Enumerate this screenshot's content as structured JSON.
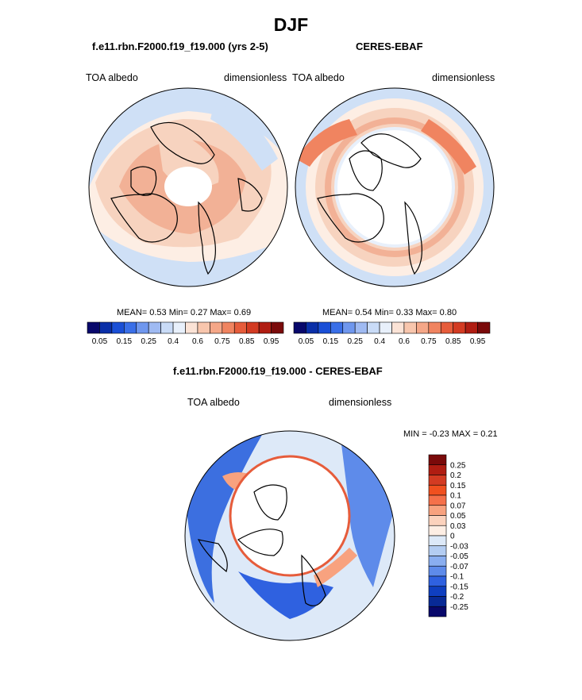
{
  "page_title": "DJF",
  "panels": [
    {
      "title": "f.e11.rbn.F2000.f19_f19.000 (yrs 2-5)",
      "left_label": "TOA albedo",
      "right_label": "dimensionless",
      "stats": "MEAN=   0.53   Min=   0.27   Max=   0.69"
    },
    {
      "title": "CERES-EBAF",
      "left_label": "TOA albedo",
      "right_label": "dimensionless",
      "stats": "MEAN=   0.54   Min=   0.33   Max=   0.80"
    },
    {
      "title": "f.e11.rbn.F2000.f19_f19.000 - CERES-EBAF",
      "left_label": "TOA albedo",
      "right_label": "dimensionless",
      "stats": "MIN =  -0.23 MAX =   0.21"
    }
  ],
  "colorbar_main": {
    "tick_labels": [
      "0.05",
      "0.15",
      "0.25",
      "0.4",
      "0.6",
      "0.75",
      "0.85",
      "0.95"
    ],
    "colors": [
      "#08086b",
      "#0a2fa8",
      "#1a4fd6",
      "#3a6fe8",
      "#6f97ee",
      "#9fbaf2",
      "#c9dbf7",
      "#e8f0fb",
      "#fbe3d6",
      "#f8c6ad",
      "#f5a788",
      "#f08460",
      "#e65c3b",
      "#d33b22",
      "#b01d12",
      "#7a0a0a"
    ]
  },
  "colorbar_diff": {
    "tick_labels": [
      "0.25",
      "0.2",
      "0.15",
      "0.1",
      "0.07",
      "0.05",
      "0.03",
      "0",
      "-0.03",
      "-0.05",
      "-0.07",
      "-0.1",
      "-0.15",
      "-0.2",
      "-0.25"
    ],
    "colors": [
      "#7a0a0a",
      "#b01d12",
      "#d33b22",
      "#f0501f",
      "#f5704a",
      "#f8a27f",
      "#fbd2bd",
      "#fdeee4",
      "#dde9f8",
      "#b4cdf2",
      "#8aaef0",
      "#5e8bea",
      "#2f61e0",
      "#0f3fc0",
      "#082a96",
      "#08086b"
    ]
  },
  "colors": {
    "land_outline": "#000000",
    "map_ocean_light": "#cfe0f6",
    "map_pos_light": "#f7d3bf",
    "map_pos_mid": "#f2b196",
    "map_neg_mid": "#3c6fe0",
    "map_neg_dark": "#1b3fbf"
  }
}
